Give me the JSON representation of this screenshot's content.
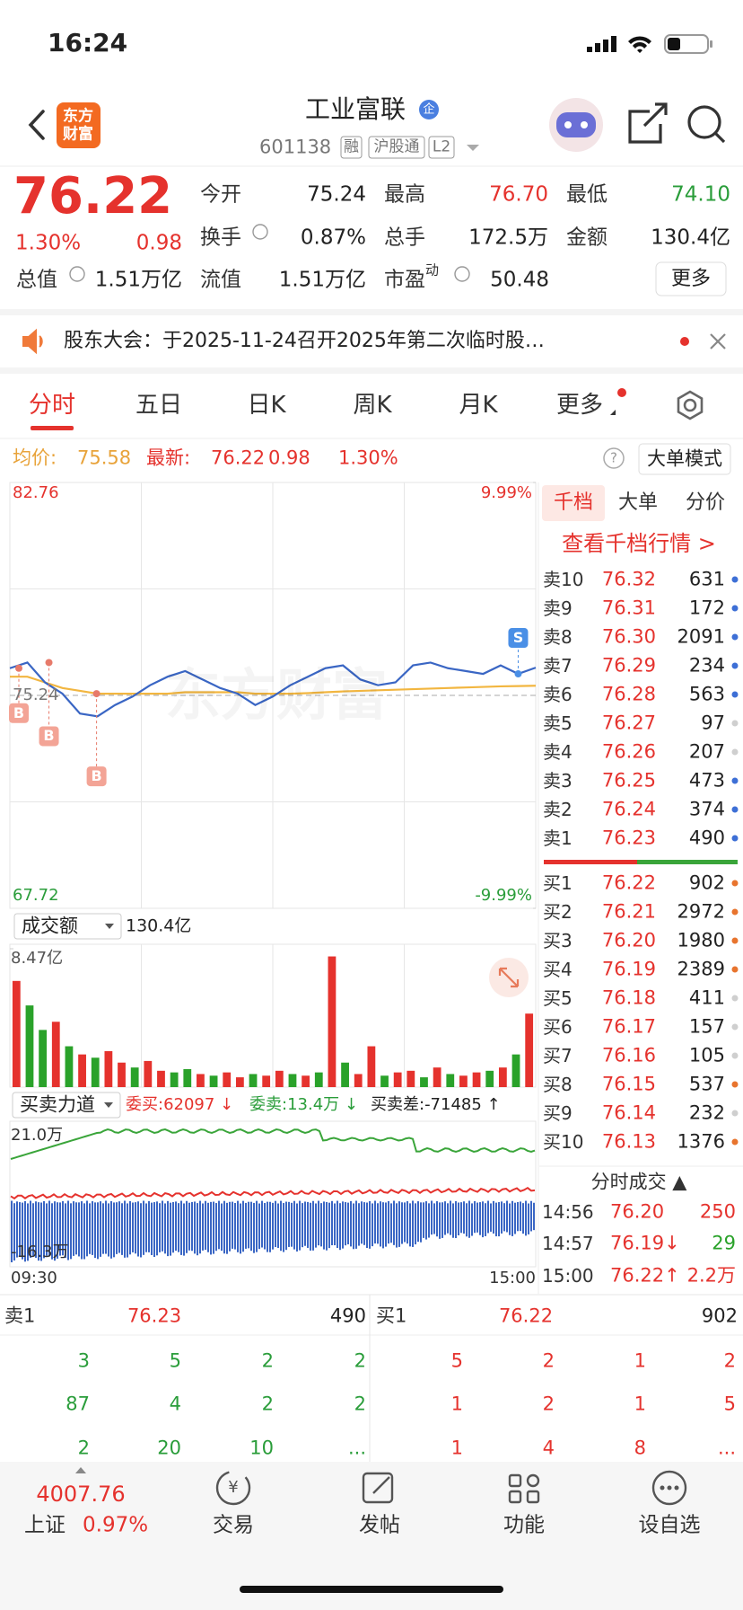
{
  "status_bar": {
    "time": "16:24"
  },
  "header": {
    "logo": [
      "东方",
      "财富"
    ],
    "title": "工业富联",
    "badge": "企",
    "code": "601138",
    "tags": [
      "融",
      "沪股通",
      "L2"
    ]
  },
  "quote": {
    "price": "76.22",
    "change_pct": "1.30%",
    "change": "0.98",
    "fields": [
      {
        "label": "今开",
        "value": "75.24"
      },
      {
        "label": "最高",
        "value": "76.70"
      },
      {
        "label": "最低",
        "value": "74.10"
      },
      {
        "label": "换手",
        "value": "0.87%"
      },
      {
        "label": "总手",
        "value": "172.5万"
      },
      {
        "label": "金额",
        "value": "130.4亿"
      },
      {
        "label": "总值",
        "value": "1.51万亿"
      },
      {
        "label": "流值",
        "value": "1.51万亿"
      },
      {
        "label": "市盈",
        "value": "50.48"
      }
    ],
    "pe_sup": "动",
    "more": "更多"
  },
  "notice": "股东大会：于2025-11-24召开2025年第二次临时股…",
  "tabs": [
    "分时",
    "五日",
    "日K",
    "周K",
    "月K",
    "更多"
  ],
  "info": {
    "avg_label": "均价:",
    "avg": "75.58",
    "latest_label": "最新:",
    "latest": "76.22",
    "change": "0.98",
    "pct": "1.30%",
    "help": "?",
    "mode": "大单模式"
  },
  "chart_data": [
    {
      "type": "line",
      "watermark": "东方财富",
      "ylim": [
        67.72,
        82.76
      ],
      "yticks": [
        82.76,
        75.24,
        67.72
      ],
      "y2lim": [
        -9.99,
        9.99
      ],
      "y2ticks": [
        {
          "value": 9.99,
          "label": "9.99%"
        },
        {
          "value": -9.99,
          "label": "-9.99%"
        }
      ],
      "series": [
        {
          "color": "#3a66c4",
          "values": [
            76.2,
            76.4,
            75.7,
            75.3,
            74.6,
            74.5,
            74.9,
            75.2,
            75.6,
            75.9,
            76.1,
            75.8,
            75.5,
            75.3,
            74.9,
            75.2,
            75.6,
            75.9,
            76.2,
            76.3,
            75.8,
            75.6,
            75.7,
            76.3,
            76.4,
            76.2,
            76.1,
            76.0,
            76.3,
            76.0,
            76.22
          ]
        },
        {
          "color": "#f2b640",
          "values": [
            75.9,
            75.9,
            75.7,
            75.5,
            75.4,
            75.3,
            75.3,
            75.3,
            75.3,
            75.3,
            75.35,
            75.35,
            75.35,
            75.35,
            75.3,
            75.3,
            75.3,
            75.32,
            75.35,
            75.38,
            75.4,
            75.42,
            75.44,
            75.46,
            75.48,
            75.5,
            75.52,
            75.54,
            75.56,
            75.57,
            75.58
          ]
        }
      ],
      "markers": [
        {
          "label": "B",
          "index": 0
        },
        {
          "label": "B",
          "index": 1
        },
        {
          "label": "B",
          "index": 3
        },
        {
          "label": "S",
          "index": 29
        }
      ]
    },
    {
      "type": "bar",
      "label": "成交额",
      "total": "130.4亿",
      "ylim": [
        0,
        8.47
      ],
      "yticks": [
        {
          "value": 8.47,
          "label": "8.47亿"
        }
      ],
      "values": [
        6.5,
        5.0,
        3.5,
        4.0,
        2.5,
        2.0,
        1.8,
        2.2,
        1.5,
        1.2,
        1.6,
        1.0,
        0.9,
        1.1,
        0.8,
        0.7,
        0.9,
        0.6,
        0.8,
        0.7,
        1.0,
        0.8,
        0.7,
        0.9,
        8.0,
        1.5,
        0.8,
        2.5,
        0.7,
        0.9,
        1.0,
        0.6,
        1.2,
        0.8,
        0.7,
        0.9,
        1.0,
        1.2,
        2.0,
        4.5
      ],
      "bar_colors": [
        "#e5322d",
        "#2aa22a",
        "#2aa22a",
        "#e5322d",
        "#2aa22a",
        "#e5322d",
        "#2aa22a",
        "#e5322d",
        "#e5322d",
        "#2aa22a",
        "#e5322d",
        "#e5322d",
        "#2aa22a",
        "#2aa22a",
        "#e5322d",
        "#2aa22a",
        "#e5322d",
        "#e5322d",
        "#2aa22a",
        "#e5322d",
        "#e5322d",
        "#2aa22a",
        "#e5322d",
        "#2aa22a",
        "#e5322d",
        "#2aa22a",
        "#e5322d",
        "#e5322d",
        "#2aa22a",
        "#e5322d",
        "#e5322d",
        "#2aa22a",
        "#e5322d",
        "#2aa22a",
        "#e5322d",
        "#e5322d",
        "#2aa22a",
        "#e5322d",
        "#2aa22a",
        "#e5322d"
      ]
    }
  ],
  "strength": {
    "label": "买卖力道",
    "buy": "委买:62097 ↓",
    "sell": "委卖:13.4万 ↓",
    "diff": "买卖差:-71485 ↑",
    "top": "21.0万",
    "bottom": "-16.3万",
    "start": "09:30",
    "end": "15:00"
  },
  "order_book": {
    "tabs": [
      "千档",
      "大单",
      "分价"
    ],
    "link": "查看千档行情 >",
    "asks": [
      {
        "label": "卖10",
        "price": "76.32",
        "volume": "631",
        "dot": "#3d6fd6"
      },
      {
        "label": "卖9",
        "price": "76.31",
        "volume": "172",
        "dot": "#3d6fd6"
      },
      {
        "label": "卖8",
        "price": "76.30",
        "volume": "2091",
        "dot": "#3d6fd6"
      },
      {
        "label": "卖7",
        "price": "76.29",
        "volume": "234",
        "dot": "#3d6fd6"
      },
      {
        "label": "卖6",
        "price": "76.28",
        "volume": "563",
        "dot": "#3d6fd6"
      },
      {
        "label": "卖5",
        "price": "76.27",
        "volume": "97",
        "dot": "#cfcfcf"
      },
      {
        "label": "卖4",
        "price": "76.26",
        "volume": "207",
        "dot": "#cfcfcf"
      },
      {
        "label": "卖3",
        "price": "76.25",
        "volume": "473",
        "dot": "#3d6fd6"
      },
      {
        "label": "卖2",
        "price": "76.24",
        "volume": "374",
        "dot": "#3d6fd6"
      },
      {
        "label": "卖1",
        "price": "76.23",
        "volume": "490",
        "dot": "#3d6fd6"
      }
    ],
    "bids": [
      {
        "label": "买1",
        "price": "76.22",
        "volume": "902",
        "dot": "#e8742e"
      },
      {
        "label": "买2",
        "price": "76.21",
        "volume": "2972",
        "dot": "#e8742e"
      },
      {
        "label": "买3",
        "price": "76.20",
        "volume": "1980",
        "dot": "#e8742e"
      },
      {
        "label": "买4",
        "price": "76.19",
        "volume": "2389",
        "dot": "#e8742e"
      },
      {
        "label": "买5",
        "price": "76.18",
        "volume": "411",
        "dot": "#cfcfcf"
      },
      {
        "label": "买6",
        "price": "76.17",
        "volume": "157",
        "dot": "#cfcfcf"
      },
      {
        "label": "买7",
        "price": "76.16",
        "volume": "105",
        "dot": "#cfcfcf"
      },
      {
        "label": "买8",
        "price": "76.15",
        "volume": "537",
        "dot": "#e8742e"
      },
      {
        "label": "买9",
        "price": "76.14",
        "volume": "232",
        "dot": "#cfcfcf"
      },
      {
        "label": "买10",
        "price": "76.13",
        "volume": "1376",
        "dot": "#e8742e"
      }
    ]
  },
  "trades": {
    "title": "分时成交 ▲",
    "rows": [
      {
        "time": "14:56",
        "price": "76.20",
        "volume": "250",
        "color": "#e5322d"
      },
      {
        "time": "14:57",
        "price": "76.19↓",
        "volume": "29",
        "color": "#2aa22a"
      },
      {
        "time": "15:00",
        "price": "76.22↑",
        "volume": "2.2万",
        "color": "#e5322d"
      }
    ]
  },
  "queue": {
    "ask": {
      "label": "卖1",
      "price": "76.23",
      "volume": "490",
      "rows": [
        [
          "3",
          "5",
          "2",
          "2"
        ],
        [
          "87",
          "4",
          "2",
          "2"
        ],
        [
          "2",
          "20",
          "10",
          "..."
        ]
      ]
    },
    "bid": {
      "label": "买1",
      "price": "76.22",
      "volume": "902",
      "rows": [
        [
          "5",
          "2",
          "1",
          "2"
        ],
        [
          "1",
          "2",
          "1",
          "5"
        ],
        [
          "1",
          "4",
          "8",
          "..."
        ]
      ]
    }
  },
  "tab_bar": {
    "index_value": "4007.76",
    "index_name": "上证",
    "index_pct": "0.97%",
    "trade_icon": "¥",
    "items": [
      "交易",
      "发帖",
      "功能",
      "设自选"
    ]
  }
}
